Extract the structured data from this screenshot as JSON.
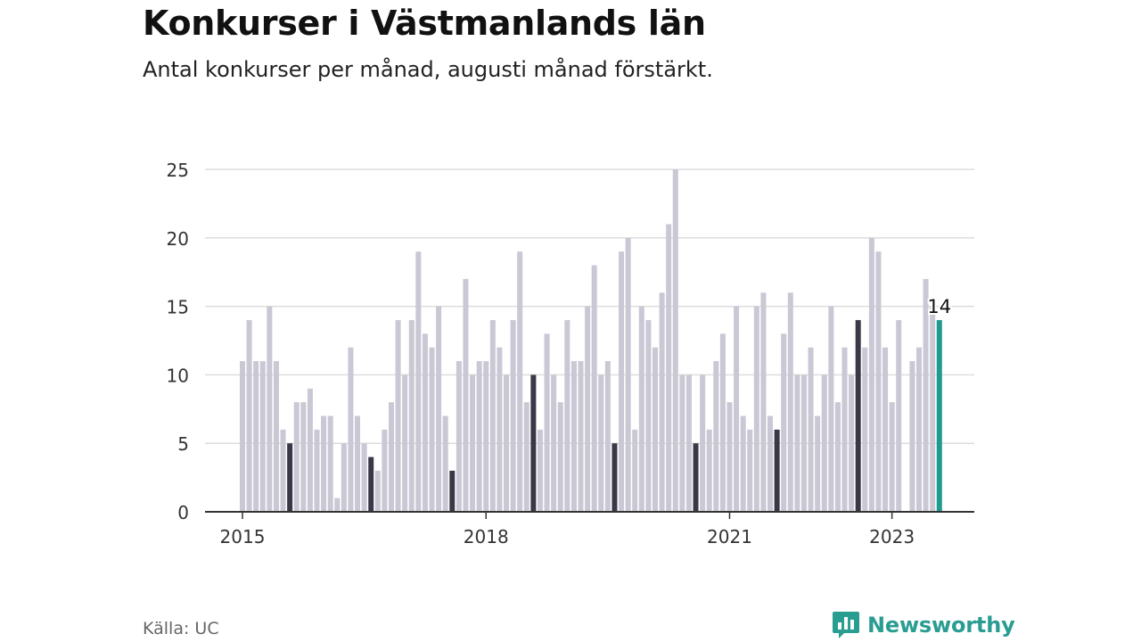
{
  "chart_data": {
    "type": "bar",
    "title": "Konkurser i Västmanlands län",
    "subtitle": "Antal konkurser per månad, augusti månad förstärkt.",
    "ylim": [
      0,
      25
    ],
    "yticks": [
      0,
      5,
      10,
      15,
      20,
      25
    ],
    "xticks": [
      "2015",
      "2018",
      "2021",
      "2023"
    ],
    "start": "2015-01",
    "highlight_month": "augusti",
    "latest_label": "14",
    "values": [
      11,
      14,
      11,
      11,
      15,
      11,
      6,
      5,
      8,
      8,
      9,
      6,
      7,
      7,
      1,
      5,
      12,
      7,
      5,
      4,
      3,
      6,
      8,
      14,
      10,
      14,
      19,
      13,
      12,
      15,
      7,
      3,
      11,
      17,
      10,
      11,
      11,
      14,
      12,
      10,
      14,
      19,
      8,
      10,
      6,
      13,
      10,
      8,
      14,
      11,
      11,
      15,
      18,
      10,
      11,
      5,
      19,
      20,
      6,
      15,
      14,
      12,
      16,
      21,
      25,
      10,
      10,
      5,
      10,
      6,
      11,
      13,
      8,
      15,
      7,
      6,
      15,
      16,
      7,
      6,
      13,
      16,
      10,
      10,
      12,
      7,
      10,
      15,
      8,
      12,
      10,
      14,
      12,
      20,
      19,
      12,
      8,
      14,
      0,
      11,
      12,
      17,
      15,
      14
    ],
    "colors": {
      "bar": "#c9c8d4",
      "august": "#3a3847",
      "latest": "#1f9a8e",
      "grid": "#dddddd",
      "axis": "#333333"
    }
  },
  "footer": {
    "source": "Källa: UC",
    "brand": "Newsworthy",
    "brand_color": "#2a9d93"
  }
}
